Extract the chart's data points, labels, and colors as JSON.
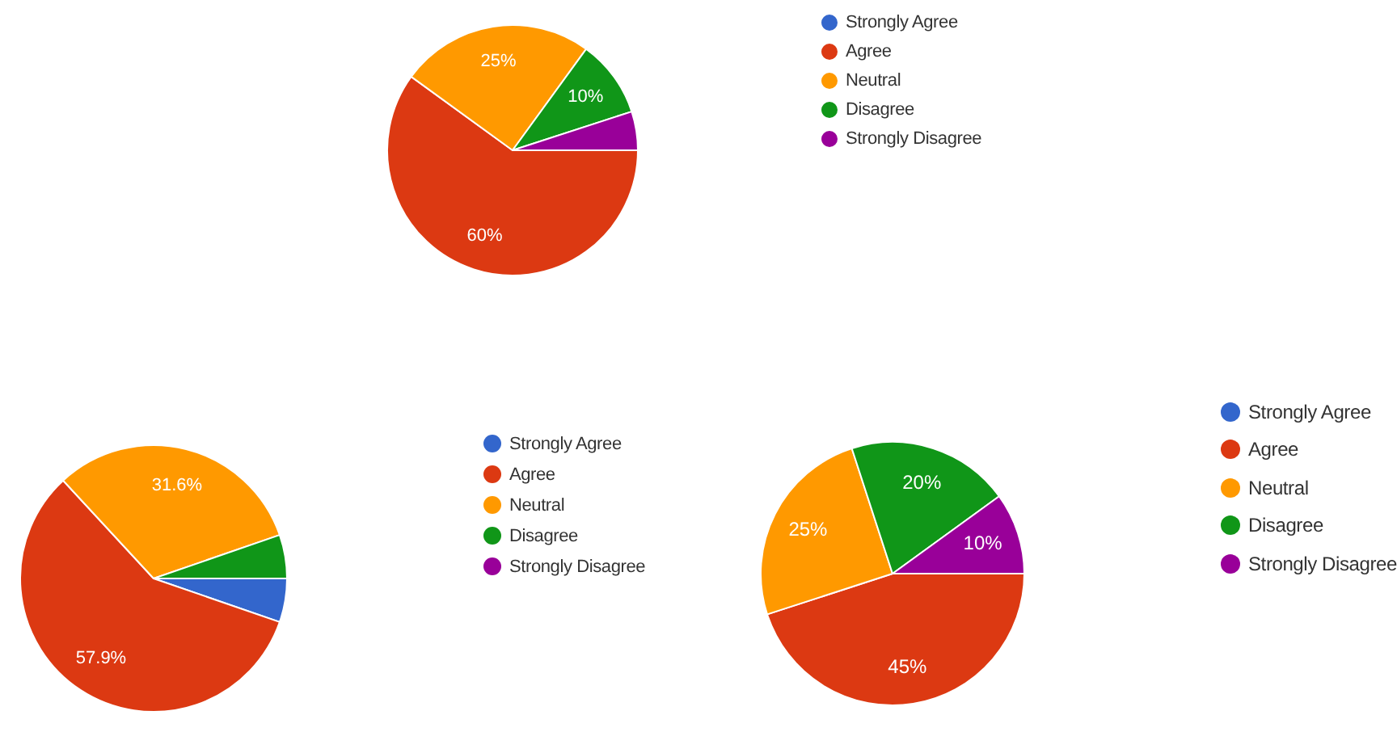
{
  "chart_data": [
    {
      "type": "pie",
      "categories": [
        "Strongly Agree",
        "Agree",
        "Neutral",
        "Disagree",
        "Strongly Disagree"
      ],
      "values": [
        0,
        60,
        25,
        10,
        5
      ],
      "colors": [
        "#3366cc",
        "#dc3912",
        "#ff9900",
        "#109618",
        "#990099"
      ],
      "value_labels": [
        null,
        "60%",
        "25%",
        "10%",
        null
      ],
      "legend": "right"
    },
    {
      "type": "pie",
      "categories": [
        "Strongly Agree",
        "Agree",
        "Neutral",
        "Disagree",
        "Strongly Disagree"
      ],
      "values": [
        5.3,
        57.9,
        31.6,
        5.3,
        0
      ],
      "colors": [
        "#3366cc",
        "#dc3912",
        "#ff9900",
        "#109618",
        "#990099"
      ],
      "value_labels": [
        null,
        "57.9%",
        "31.6%",
        null,
        null
      ],
      "legend": "right"
    },
    {
      "type": "pie",
      "categories": [
        "Strongly Agree",
        "Agree",
        "Neutral",
        "Disagree",
        "Strongly Disagree"
      ],
      "values": [
        0,
        45,
        25,
        20,
        10
      ],
      "colors": [
        "#3366cc",
        "#dc3912",
        "#ff9900",
        "#109618",
        "#990099"
      ],
      "value_labels": [
        null,
        "45%",
        "25%",
        "20%",
        "10%"
      ],
      "legend": "right"
    }
  ]
}
